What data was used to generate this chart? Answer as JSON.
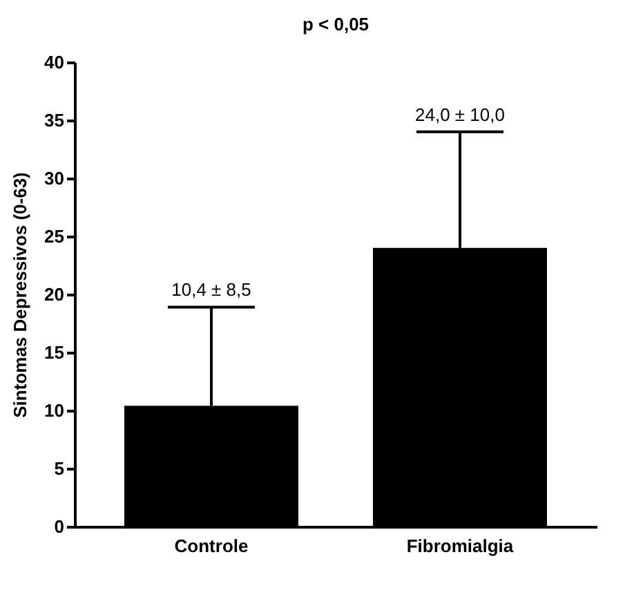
{
  "chart_data": {
    "type": "bar",
    "title": "p < 0,05",
    "ylabel": "Sintomas Depressivos (0-63)",
    "categories": [
      "Controle",
      "Fibromialgia"
    ],
    "values": [
      10.4,
      24.0
    ],
    "errors": [
      [
        10.4,
        18.9
      ],
      [
        24.0,
        34.0
      ]
    ],
    "annotations": [
      {
        "text": "10,4 ± 8,5",
        "x": "Controle",
        "y": 18.9
      },
      {
        "text": "24,0 ± 10,0",
        "x": "Fibromialgia",
        "y": 34.0
      }
    ],
    "color": "#000000",
    "ylim": [
      0,
      40
    ],
    "yticks": [
      0,
      5,
      10,
      15,
      20,
      25,
      30,
      35,
      40
    ],
    "grid": false
  }
}
